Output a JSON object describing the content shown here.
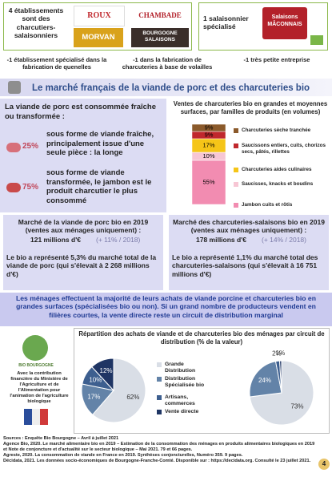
{
  "header": {
    "left_text": "4 établissements sont des charcutiers-salaisonniers",
    "logos": [
      "ROUX",
      "CHAMBADE",
      "MORVAN",
      "BOURGOGNE SALAISONS"
    ],
    "right_text": "1 salaisonnier spécialisé",
    "right_logo": "Salaisons MÂCONNAIS"
  },
  "bullets": [
    "-1 établissement spécialisé dans la fabrication de quenelles",
    "-1 dans la fabrication de charcuteries à base de volailles",
    "-1 très petite entreprise"
  ],
  "section_title": "Le marché français de la viande de porc et des charcuteries bio",
  "consumption": {
    "intro": "La viande de porc est consommée fraîche ou transformée :",
    "items": [
      {
        "share": "25%",
        "text": "sous forme de viande fraîche, principalement issue d'une seule pièce : la longe"
      },
      {
        "share": "75%",
        "text": "sous forme de viande transformée, le jambon est le produit charcutier le plus consommé"
      }
    ]
  },
  "bar_chart": {
    "type": "stacked-bar",
    "title": "Ventes de charcuteries bio en grandes et moyennes surfaces, par familles de produits (en volumes)",
    "series": [
      {
        "name": "Charcuteries sèche tranchée",
        "color": "#8b5a2b",
        "values": [
          9
        ],
        "value_labels": [
          "9%"
        ]
      },
      {
        "name": "Saucissons entiers, cuits, chorizos secs, pâtés, rillettes",
        "color": "#c0282d",
        "values": [
          9
        ],
        "value_labels": [
          "9%"
        ]
      },
      {
        "name": "Charcuteries aides culinaires",
        "color": "#f5c518",
        "values": [
          17
        ],
        "value_labels": [
          "17%"
        ]
      },
      {
        "name": "Saucisses, knacks et boudins",
        "color": "#f7c6d4",
        "values": [
          10
        ],
        "value_labels": [
          "10%"
        ]
      },
      {
        "name": "Jambon cuits et rôtis",
        "color": "#f28cb1",
        "values": [
          55
        ],
        "value_labels": [
          "55%"
        ]
      }
    ]
  },
  "markets": [
    {
      "title": "Marché de la viande de porc bio en 2019 (ventes aux ménages uniquement) :",
      "amount": "121 millions d'€",
      "change": "(+ 11% / 2018)",
      "share": "Le bio a représenté 5,3% du marché total de la viande de porc (qui s'élevait à 2 268 millions d'€)"
    },
    {
      "title": "Marché des charcuteries-salaisons bio en 2019 (ventes aux ménages uniquement) :",
      "amount": "178 millions d'€",
      "change": "(+ 14% / 2018)",
      "share": "Le bio a représenté 1,1% du marché total des charcuteries-salaisons (qui s'élevait à 16 751 millions d'€)"
    }
  ],
  "summary": "Les ménages effectuent la majorité de leurs achats de viande porcine et charcuteries bio en grandes surfaces (spécialisées bio ou non). Si un grand nombre de producteurs vendent en filières courtes, la vente directe reste un circuit de distribution marginal",
  "sponsor": {
    "logo": "BIO BOURGOGNE",
    "text": "Avec la contribution financière du Ministère de l'Agriculture et de l'Alimentation pour l'animation de l'agriculture biologique"
  },
  "pie_chart": {
    "type": "pie",
    "title": "Répartition des achats de viande et de charcuteries bio des ménages par circuit de distribution (% de la valeur)",
    "categories": [
      "Grande Distribution",
      "Distribution Spécialisée bio",
      "Artisans, commerces",
      "Vente directe"
    ],
    "colors": [
      "#d9dee6",
      "#6383a8",
      "#3d5f8f",
      "#1f3564"
    ],
    "pies": [
      {
        "values": [
          62,
          17,
          10,
          12
        ],
        "value_labels": [
          "62%",
          "17%",
          "10%",
          "12%"
        ]
      },
      {
        "values": [
          73,
          24,
          2,
          1
        ],
        "value_labels": [
          "73%",
          "24%",
          "2%",
          "1%"
        ]
      }
    ]
  },
  "sources": [
    "Sources : Enquête Bio Bourgogne – Avril à juillet 2021",
    "Agence Bio, 2020. Le marché alimentaire bio en 2019 – Estimation de la consommation des ménages en produits alimentaires biologiques en 2019 et Note de conjoncture et d'actualité sur le secteur biologique – Mai 2021. 79 et 66 pages.",
    "Agreste, 2020. La consommation de viande en France en 2019. Synthèses conjoncturelles, Numéro 359. 9 pages.",
    "Décidata, 2021. Les données socio-économiques de Bourgogne-Franche-Comté. Disponible sur : https://decidata.org. Consulté le 23 juillet 2021."
  ],
  "page_number": "4"
}
